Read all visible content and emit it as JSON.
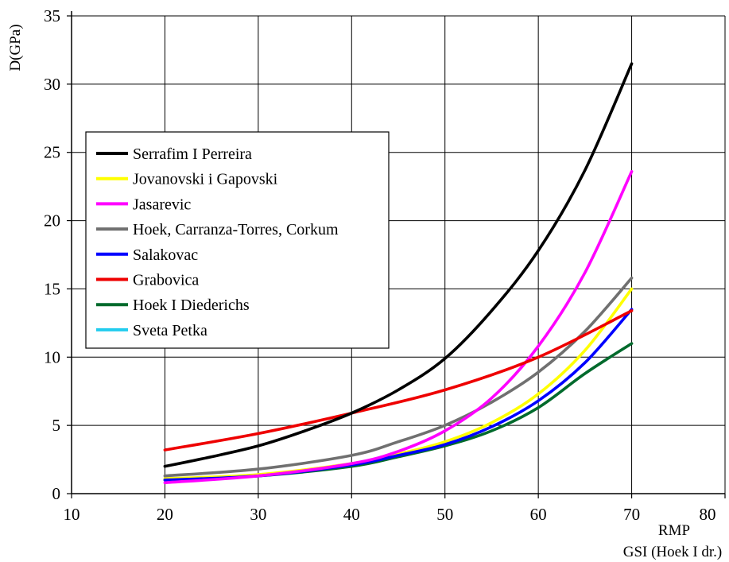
{
  "chart_data": {
    "type": "line",
    "ylabel": "D(GPa)",
    "xlabel_lines": [
      "RMP",
      "GSI (Hoek I dr.)"
    ],
    "xlim": [
      10,
      80
    ],
    "ylim": [
      0,
      35
    ],
    "xticks": [
      10,
      20,
      30,
      40,
      50,
      60,
      70,
      80
    ],
    "yticks": [
      0,
      5,
      10,
      15,
      20,
      25,
      30,
      35
    ],
    "grid": true,
    "legend_position": "top-left",
    "series": [
      {
        "name": "Serrafim I Perreira",
        "color": "#000000",
        "x": [
          20,
          25,
          30,
          35,
          40,
          45,
          50,
          55,
          60,
          65,
          70
        ],
        "y": [
          2.0,
          2.7,
          3.5,
          4.6,
          5.9,
          7.6,
          9.9,
          13.4,
          17.8,
          23.7,
          31.5
        ]
      },
      {
        "name": "Jovanovski i Gapovski",
        "color": "#ffff00",
        "x": [
          20,
          30,
          40,
          45,
          50,
          55,
          60,
          65,
          70
        ],
        "y": [
          1.1,
          1.4,
          2.2,
          2.9,
          3.8,
          5.2,
          7.3,
          10.5,
          15.0
        ]
      },
      {
        "name": "Jasarevic",
        "color": "#ff00ff",
        "x": [
          20,
          30,
          40,
          45,
          50,
          55,
          60,
          65,
          70
        ],
        "y": [
          0.8,
          1.3,
          2.2,
          3.1,
          4.6,
          7.0,
          10.8,
          16.2,
          23.6
        ]
      },
      {
        "name": "Hoek, Carranza-Torres, Corkum",
        "color": "#707070",
        "x": [
          20,
          30,
          40,
          45,
          50,
          55,
          60,
          65,
          70
        ],
        "y": [
          1.3,
          1.8,
          2.8,
          3.8,
          5.0,
          6.7,
          8.9,
          11.9,
          15.8
        ]
      },
      {
        "name": "Salakovac",
        "color": "#0000ff",
        "x": [
          20,
          30,
          40,
          45,
          50,
          55,
          60,
          65,
          70
        ],
        "y": [
          1.0,
          1.3,
          2.1,
          2.8,
          3.6,
          4.9,
          6.8,
          9.6,
          13.5
        ]
      },
      {
        "name": "Grabovica",
        "color": "#ee0000",
        "x": [
          20,
          30,
          40,
          50,
          60,
          70
        ],
        "y": [
          3.2,
          4.4,
          5.9,
          7.6,
          10.0,
          13.4
        ]
      },
      {
        "name": "Hoek I Diederichs",
        "color": "#006a2c",
        "x": [
          20,
          30,
          40,
          45,
          50,
          55,
          60,
          65,
          70
        ],
        "y": [
          1.0,
          1.3,
          2.0,
          2.7,
          3.5,
          4.6,
          6.3,
          8.8,
          11.0
        ]
      },
      {
        "name": "Sveta Petka",
        "color": "#22ccee",
        "x": [],
        "y": []
      }
    ]
  }
}
